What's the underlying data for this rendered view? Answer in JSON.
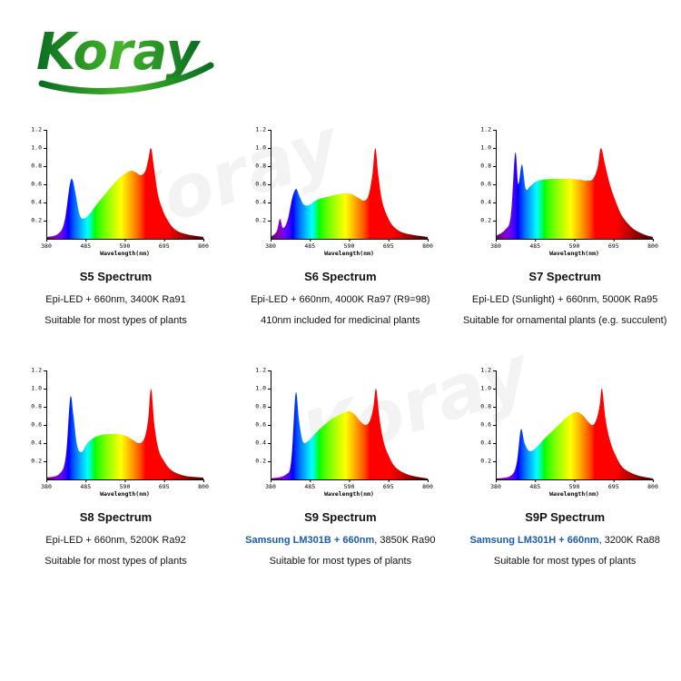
{
  "logo": {
    "text": "Koray"
  },
  "watermark": {
    "text": "Koray"
  },
  "chart_data": [
    {
      "type": "area",
      "title": "S5 Spectrum",
      "desc1_highlight": "",
      "desc1_rest": "Epi-LED + 660nm, 3400K Ra91",
      "desc2": "Suitable for most types of plants",
      "xlabel": "Wavelength(nm)",
      "xlim": [
        380,
        800
      ],
      "ylim": [
        0,
        1.2
      ],
      "xticks": [
        380,
        485,
        590,
        695,
        800
      ],
      "yticks": [
        0.2,
        0.4,
        0.6,
        0.8,
        1.0,
        1.2
      ],
      "points": [
        [
          380,
          0.02
        ],
        [
          410,
          0.05
        ],
        [
          428,
          0.18
        ],
        [
          443,
          0.6
        ],
        [
          450,
          0.65
        ],
        [
          458,
          0.5
        ],
        [
          468,
          0.28
        ],
        [
          478,
          0.22
        ],
        [
          495,
          0.27
        ],
        [
          515,
          0.38
        ],
        [
          535,
          0.48
        ],
        [
          555,
          0.58
        ],
        [
          575,
          0.67
        ],
        [
          592,
          0.72
        ],
        [
          607,
          0.75
        ],
        [
          620,
          0.73
        ],
        [
          633,
          0.7
        ],
        [
          645,
          0.75
        ],
        [
          653,
          0.88
        ],
        [
          660,
          1.0
        ],
        [
          668,
          0.78
        ],
        [
          678,
          0.5
        ],
        [
          690,
          0.33
        ],
        [
          705,
          0.2
        ],
        [
          725,
          0.1
        ],
        [
          755,
          0.05
        ],
        [
          800,
          0.02
        ]
      ]
    },
    {
      "type": "area",
      "title": "S6 Spectrum",
      "desc1_highlight": "",
      "desc1_rest": "Epi-LED + 660nm, 4000K Ra97 (R9=98)",
      "desc2": "410nm included for medicinal plants",
      "xlabel": "Wavelength(nm)",
      "xlim": [
        380,
        800
      ],
      "ylim": [
        0,
        1.2
      ],
      "xticks": [
        380,
        485,
        590,
        695,
        800
      ],
      "yticks": [
        0.2,
        0.4,
        0.6,
        0.8,
        1.0,
        1.2
      ],
      "points": [
        [
          380,
          0.02
        ],
        [
          396,
          0.08
        ],
        [
          405,
          0.22
        ],
        [
          413,
          0.12
        ],
        [
          425,
          0.2
        ],
        [
          438,
          0.45
        ],
        [
          448,
          0.55
        ],
        [
          456,
          0.48
        ],
        [
          468,
          0.38
        ],
        [
          482,
          0.37
        ],
        [
          500,
          0.42
        ],
        [
          520,
          0.45
        ],
        [
          540,
          0.47
        ],
        [
          560,
          0.49
        ],
        [
          580,
          0.5
        ],
        [
          598,
          0.49
        ],
        [
          615,
          0.45
        ],
        [
          630,
          0.42
        ],
        [
          642,
          0.48
        ],
        [
          652,
          0.7
        ],
        [
          660,
          1.0
        ],
        [
          668,
          0.7
        ],
        [
          678,
          0.42
        ],
        [
          692,
          0.25
        ],
        [
          710,
          0.13
        ],
        [
          740,
          0.06
        ],
        [
          800,
          0.02
        ]
      ]
    },
    {
      "type": "area",
      "title": "S7 Spectrum",
      "desc1_highlight": "",
      "desc1_rest": "Epi-LED (Sunlight) + 660nm, 5000K Ra95",
      "desc2": "Suitable for ornamental plants (e.g. succulent)",
      "xlabel": "Wavelength(nm)",
      "xlim": [
        380,
        800
      ],
      "ylim": [
        0,
        1.2
      ],
      "xticks": [
        380,
        485,
        590,
        695,
        800
      ],
      "yticks": [
        0.2,
        0.4,
        0.6,
        0.8,
        1.0,
        1.2
      ],
      "points": [
        [
          380,
          0.03
        ],
        [
          405,
          0.1
        ],
        [
          420,
          0.25
        ],
        [
          432,
          0.95
        ],
        [
          440,
          0.6
        ],
        [
          450,
          0.82
        ],
        [
          460,
          0.55
        ],
        [
          472,
          0.58
        ],
        [
          488,
          0.63
        ],
        [
          505,
          0.65
        ],
        [
          530,
          0.66
        ],
        [
          555,
          0.66
        ],
        [
          580,
          0.66
        ],
        [
          605,
          0.65
        ],
        [
          625,
          0.64
        ],
        [
          640,
          0.66
        ],
        [
          652,
          0.78
        ],
        [
          661,
          1.0
        ],
        [
          672,
          0.82
        ],
        [
          685,
          0.6
        ],
        [
          700,
          0.42
        ],
        [
          718,
          0.25
        ],
        [
          745,
          0.12
        ],
        [
          775,
          0.05
        ],
        [
          800,
          0.02
        ]
      ]
    },
    {
      "type": "area",
      "title": "S8 Spectrum",
      "desc1_highlight": "",
      "desc1_rest": "Epi-LED + 660nm, 5200K Ra92",
      "desc2": "Suitable for most types of plants",
      "xlabel": "Wavelength(nm)",
      "xlim": [
        380,
        800
      ],
      "ylim": [
        0,
        1.2
      ],
      "xticks": [
        380,
        485,
        590,
        695,
        800
      ],
      "yticks": [
        0.2,
        0.4,
        0.6,
        0.8,
        1.0,
        1.2
      ],
      "points": [
        [
          380,
          0.02
        ],
        [
          415,
          0.06
        ],
        [
          432,
          0.25
        ],
        [
          444,
          0.9
        ],
        [
          452,
          0.72
        ],
        [
          462,
          0.38
        ],
        [
          474,
          0.3
        ],
        [
          490,
          0.4
        ],
        [
          508,
          0.46
        ],
        [
          528,
          0.49
        ],
        [
          550,
          0.5
        ],
        [
          572,
          0.5
        ],
        [
          592,
          0.48
        ],
        [
          610,
          0.44
        ],
        [
          628,
          0.4
        ],
        [
          642,
          0.45
        ],
        [
          652,
          0.65
        ],
        [
          660,
          1.0
        ],
        [
          669,
          0.6
        ],
        [
          680,
          0.33
        ],
        [
          695,
          0.2
        ],
        [
          715,
          0.1
        ],
        [
          750,
          0.04
        ],
        [
          800,
          0.02
        ]
      ]
    },
    {
      "type": "area",
      "title": "S9 Spectrum",
      "desc1_highlight": "Samsung LM301B + 660nm",
      "desc1_rest": ", 3850K Ra90",
      "desc2": "Suitable for most types of plants",
      "xlabel": "Wavelength(nm)",
      "xlim": [
        380,
        800
      ],
      "ylim": [
        0,
        1.2
      ],
      "xticks": [
        380,
        485,
        590,
        695,
        800
      ],
      "yticks": [
        0.2,
        0.4,
        0.6,
        0.8,
        1.0,
        1.2
      ],
      "points": [
        [
          380,
          0.01
        ],
        [
          420,
          0.05
        ],
        [
          435,
          0.2
        ],
        [
          447,
          0.95
        ],
        [
          456,
          0.65
        ],
        [
          466,
          0.42
        ],
        [
          480,
          0.42
        ],
        [
          498,
          0.5
        ],
        [
          518,
          0.58
        ],
        [
          538,
          0.65
        ],
        [
          558,
          0.7
        ],
        [
          578,
          0.74
        ],
        [
          592,
          0.75
        ],
        [
          606,
          0.71
        ],
        [
          620,
          0.64
        ],
        [
          634,
          0.6
        ],
        [
          646,
          0.65
        ],
        [
          655,
          0.8
        ],
        [
          662,
          1.0
        ],
        [
          671,
          0.68
        ],
        [
          682,
          0.42
        ],
        [
          696,
          0.26
        ],
        [
          715,
          0.13
        ],
        [
          750,
          0.05
        ],
        [
          800,
          0.01
        ]
      ]
    },
    {
      "type": "area",
      "title": "S9P Spectrum",
      "desc1_highlight": "Samsung LM301H + 660nm",
      "desc1_rest": ", 3200K Ra88",
      "desc2": "Suitable for most types of plants",
      "xlabel": "Wavelength(nm)",
      "xlim": [
        380,
        800
      ],
      "ylim": [
        0,
        1.2
      ],
      "xticks": [
        380,
        485,
        590,
        695,
        800
      ],
      "yticks": [
        0.2,
        0.4,
        0.6,
        0.8,
        1.0,
        1.2
      ],
      "points": [
        [
          380,
          0.01
        ],
        [
          420,
          0.04
        ],
        [
          436,
          0.18
        ],
        [
          447,
          0.55
        ],
        [
          457,
          0.4
        ],
        [
          470,
          0.31
        ],
        [
          488,
          0.35
        ],
        [
          508,
          0.44
        ],
        [
          528,
          0.52
        ],
        [
          548,
          0.6
        ],
        [
          568,
          0.68
        ],
        [
          586,
          0.73
        ],
        [
          600,
          0.74
        ],
        [
          614,
          0.7
        ],
        [
          628,
          0.63
        ],
        [
          640,
          0.6
        ],
        [
          650,
          0.67
        ],
        [
          658,
          0.82
        ],
        [
          664,
          1.0
        ],
        [
          674,
          0.65
        ],
        [
          686,
          0.42
        ],
        [
          700,
          0.27
        ],
        [
          720,
          0.13
        ],
        [
          755,
          0.05
        ],
        [
          800,
          0.01
        ]
      ]
    }
  ]
}
